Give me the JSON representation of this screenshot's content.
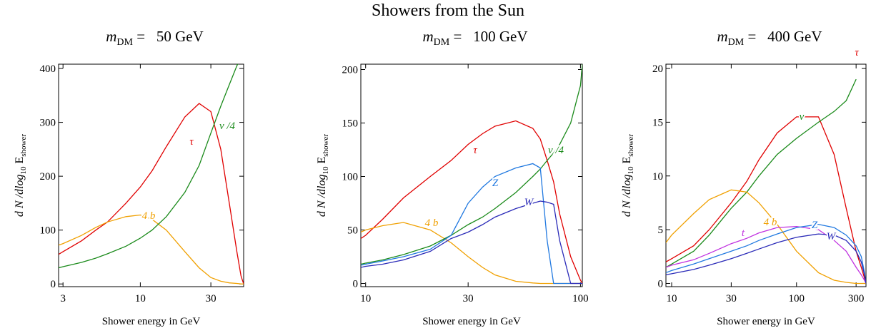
{
  "title": "Showers from the Sun",
  "chart_data": [
    {
      "type": "line",
      "title": {
        "symbol": "m",
        "subscript": "DM",
        "text": " =   50 GeV"
      },
      "xlabel": "Shower energy in GeV",
      "ylabel": [
        "d N /dlog",
        "10",
        " E",
        "shower"
      ],
      "xscale": "log",
      "xlim": [
        2.8,
        50
      ],
      "xticks": [
        3,
        10,
        30
      ],
      "ylim": [
        -5,
        408
      ],
      "yticks": [
        0,
        100,
        200,
        300,
        400
      ],
      "x": [
        2.8,
        3,
        4,
        5,
        6,
        8,
        10,
        12,
        15,
        20,
        25,
        30,
        35,
        40,
        45,
        48,
        50
      ],
      "series": [
        {
          "name": "τ",
          "color": "#e00000",
          "values": [
            55,
            60,
            80,
            100,
            115,
            150,
            180,
            210,
            255,
            310,
            335,
            320,
            250,
            150,
            60,
            15,
            0
          ]
        },
        {
          "name": "4 b",
          "color": "#f0a000",
          "values": [
            72,
            75,
            90,
            105,
            115,
            125,
            128,
            120,
            100,
            60,
            30,
            12,
            5,
            2,
            1,
            0,
            0
          ]
        },
        {
          "name": "ν /4",
          "color": "#1a8a1a",
          "values": [
            30,
            32,
            40,
            48,
            56,
            70,
            85,
            100,
            125,
            170,
            220,
            280,
            330,
            370,
            405,
            420,
            null
          ]
        }
      ]
    },
    {
      "type": "line",
      "title": {
        "symbol": "m",
        "subscript": "DM",
        "text": " =   100 GeV"
      },
      "xlabel": "Shower energy in GeV",
      "ylabel": [
        "d N /dlog",
        "10",
        " E",
        "shower"
      ],
      "xscale": "log",
      "xlim": [
        9.5,
        102
      ],
      "xticks": [
        10,
        30,
        100
      ],
      "ylim": [
        -3,
        205
      ],
      "yticks": [
        0,
        50,
        100,
        150,
        200
      ],
      "x": [
        9.5,
        10,
        12,
        15,
        20,
        25,
        30,
        35,
        40,
        50,
        60,
        65,
        70,
        75,
        80,
        90,
        100,
        102
      ],
      "series": [
        {
          "name": "τ",
          "color": "#e00000",
          "values": [
            42,
            45,
            60,
            80,
            100,
            115,
            130,
            140,
            147,
            152,
            145,
            135,
            115,
            95,
            65,
            25,
            3,
            0
          ]
        },
        {
          "name": "4 b",
          "color": "#f0a000",
          "values": [
            48,
            50,
            54,
            57,
            50,
            38,
            25,
            15,
            8,
            2,
            0.5,
            0,
            0,
            0,
            0,
            0,
            0,
            0
          ]
        },
        {
          "name": "ν /4",
          "color": "#1a8a1a",
          "values": [
            18,
            19,
            22,
            27,
            35,
            45,
            55,
            62,
            70,
            85,
            100,
            107,
            115,
            122,
            130,
            150,
            185,
            205
          ]
        },
        {
          "name": "Z",
          "color": "#1f78e0",
          "values": [
            17,
            18,
            21,
            25,
            32,
            45,
            75,
            90,
            100,
            108,
            112,
            108,
            40,
            0,
            0,
            0,
            0,
            0
          ]
        },
        {
          "name": "W",
          "color": "#2a2ab8",
          "values": [
            15,
            16,
            18,
            22,
            30,
            42,
            48,
            55,
            62,
            70,
            75,
            77,
            76,
            74,
            40,
            0,
            0,
            0
          ]
        }
      ]
    },
    {
      "type": "line",
      "title": {
        "symbol": "m",
        "subscript": "DM",
        "text": " =   400 GeV"
      },
      "xlabel": "Shower energy in GeV",
      "ylabel": [
        "d N /dlog",
        "10",
        " E",
        "shower"
      ],
      "xscale": "log",
      "xlim": [
        9,
        360
      ],
      "xticks": [
        10,
        30,
        100,
        300
      ],
      "ylim": [
        -0.3,
        20.4
      ],
      "yticks": [
        0,
        5,
        10,
        15,
        20
      ],
      "x": [
        9,
        10,
        15,
        20,
        30,
        40,
        50,
        70,
        100,
        150,
        200,
        250,
        300,
        330,
        350,
        360
      ],
      "series": [
        {
          "name": "τ",
          "color": "#e00000",
          "values": [
            2.0,
            2.3,
            3.5,
            5,
            7.5,
            9.5,
            11.5,
            14,
            15.5,
            15.5,
            12,
            7,
            3,
            1.5,
            0.5,
            0
          ]
        },
        {
          "name": "ν",
          "color": "#1a8a1a",
          "values": [
            1.5,
            1.8,
            3,
            4.5,
            7,
            8.5,
            10,
            12,
            13.5,
            15,
            16,
            17,
            19,
            null,
            null,
            null
          ]
        },
        {
          "name": "4 b",
          "color": "#f0a000",
          "values": [
            3.8,
            4.5,
            6.5,
            7.8,
            8.7,
            8.5,
            7.5,
            5.5,
            3,
            1,
            0.3,
            0.1,
            0,
            0,
            0,
            0
          ]
        },
        {
          "name": "t",
          "color": "#c030e0",
          "values": [
            1.5,
            1.7,
            2.2,
            2.8,
            3.7,
            4.2,
            4.7,
            5.2,
            5.3,
            5,
            4,
            3,
            1.5,
            0.8,
            0.3,
            0
          ]
        },
        {
          "name": "Z",
          "color": "#1f78e0",
          "values": [
            1.0,
            1.2,
            1.8,
            2.3,
            3.0,
            3.5,
            4,
            4.6,
            5.2,
            5.5,
            5.2,
            4.5,
            3.5,
            2.5,
            1,
            0
          ]
        },
        {
          "name": "W",
          "color": "#2a2ab8",
          "values": [
            0.8,
            0.9,
            1.3,
            1.7,
            2.3,
            2.8,
            3.2,
            3.8,
            4.3,
            4.6,
            4.5,
            4,
            3,
            2,
            0.8,
            0
          ]
        }
      ]
    }
  ]
}
